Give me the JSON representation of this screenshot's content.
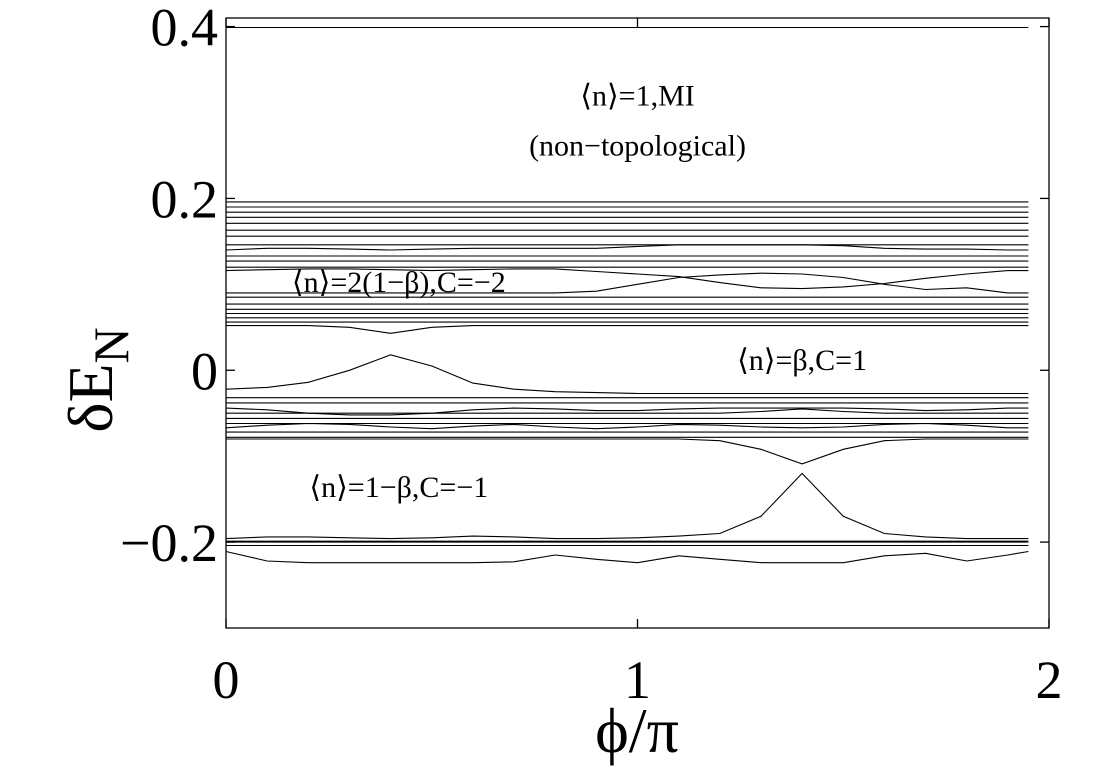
{
  "chart_data": {
    "type": "line",
    "title": "",
    "xlabel": "ϕ/π",
    "ylabel_main": "δE",
    "ylabel_sub": "N",
    "xlim": [
      0,
      2
    ],
    "ylim": [
      -0.3,
      0.41
    ],
    "xticks": [
      {
        "value": 0,
        "label": "0"
      },
      {
        "value": 1,
        "label": "1"
      },
      {
        "value": 2,
        "label": "2"
      }
    ],
    "yticks": [
      {
        "value": 0.4,
        "label": "0.4"
      },
      {
        "value": 0.2,
        "label": "0.2"
      },
      {
        "value": 0,
        "label": "0"
      },
      {
        "value": -0.2,
        "label": "−0.2"
      }
    ],
    "grid": false,
    "annotations": [
      {
        "lines": [
          "⟨n⟩=1,MI",
          "(non−topological)"
        ],
        "x": 1.0,
        "y": 0.32
      },
      {
        "lines": [
          "⟨n⟩=2(1−β),C=−2"
        ],
        "x": 0.42,
        "y": 0.103
      },
      {
        "lines": [
          "⟨n⟩=β,C=1"
        ],
        "x": 1.4,
        "y": 0.012
      },
      {
        "lines": [
          "⟨n⟩=1−β,C=−1"
        ],
        "x": 0.42,
        "y": -0.136
      }
    ],
    "x": [
      0,
      0.1,
      0.2,
      0.3,
      0.4,
      0.5,
      0.6,
      0.7,
      0.8,
      0.9,
      1.0,
      1.1,
      1.2,
      1.3,
      1.4,
      1.5,
      1.6,
      1.7,
      1.8,
      1.9,
      1.95
    ],
    "series": [
      {
        "values": [
          0.399,
          0.399,
          0.399,
          0.399,
          0.399,
          0.399,
          0.399,
          0.399,
          0.399,
          0.399,
          0.399,
          0.399,
          0.399,
          0.399,
          0.399,
          0.399,
          0.399,
          0.399,
          0.399,
          0.399,
          0.399
        ]
      },
      {
        "values": [
          0.196,
          0.196,
          0.196,
          0.196,
          0.196,
          0.196,
          0.196,
          0.196,
          0.196,
          0.196,
          0.196,
          0.196,
          0.196,
          0.196,
          0.196,
          0.196,
          0.196,
          0.196,
          0.196,
          0.196,
          0.196
        ]
      },
      {
        "values": [
          0.19,
          0.19,
          0.19,
          0.19,
          0.19,
          0.19,
          0.19,
          0.19,
          0.19,
          0.19,
          0.19,
          0.19,
          0.19,
          0.19,
          0.19,
          0.19,
          0.19,
          0.19,
          0.19,
          0.19,
          0.19
        ]
      },
      {
        "values": [
          0.184,
          0.184,
          0.184,
          0.184,
          0.184,
          0.184,
          0.184,
          0.184,
          0.184,
          0.184,
          0.184,
          0.184,
          0.184,
          0.184,
          0.184,
          0.184,
          0.184,
          0.184,
          0.184,
          0.184,
          0.184
        ]
      },
      {
        "values": [
          0.178,
          0.178,
          0.178,
          0.178,
          0.178,
          0.178,
          0.178,
          0.178,
          0.178,
          0.178,
          0.178,
          0.178,
          0.178,
          0.178,
          0.178,
          0.178,
          0.178,
          0.178,
          0.178,
          0.178,
          0.178
        ]
      },
      {
        "values": [
          0.171,
          0.171,
          0.171,
          0.171,
          0.171,
          0.171,
          0.171,
          0.171,
          0.171,
          0.171,
          0.171,
          0.171,
          0.171,
          0.171,
          0.171,
          0.171,
          0.171,
          0.171,
          0.171,
          0.171,
          0.171
        ]
      },
      {
        "values": [
          0.163,
          0.163,
          0.163,
          0.163,
          0.163,
          0.163,
          0.163,
          0.163,
          0.163,
          0.163,
          0.163,
          0.163,
          0.163,
          0.163,
          0.163,
          0.163,
          0.163,
          0.163,
          0.163,
          0.163,
          0.163
        ]
      },
      {
        "values": [
          0.156,
          0.156,
          0.156,
          0.156,
          0.156,
          0.156,
          0.156,
          0.156,
          0.156,
          0.156,
          0.156,
          0.156,
          0.156,
          0.156,
          0.156,
          0.156,
          0.156,
          0.156,
          0.156,
          0.156,
          0.156
        ]
      },
      {
        "values": [
          0.146,
          0.146,
          0.146,
          0.146,
          0.146,
          0.146,
          0.146,
          0.146,
          0.146,
          0.146,
          0.146,
          0.146,
          0.146,
          0.146,
          0.146,
          0.146,
          0.146,
          0.146,
          0.146,
          0.146,
          0.146
        ]
      },
      {
        "values": [
          0.14,
          0.142,
          0.142,
          0.141,
          0.14,
          0.141,
          0.142,
          0.142,
          0.142,
          0.142,
          0.144,
          0.146,
          0.146,
          0.146,
          0.146,
          0.145,
          0.142,
          0.141,
          0.141,
          0.14,
          0.14
        ]
      },
      {
        "values": [
          0.133,
          0.133,
          0.133,
          0.133,
          0.133,
          0.133,
          0.133,
          0.133,
          0.133,
          0.133,
          0.133,
          0.133,
          0.133,
          0.133,
          0.133,
          0.133,
          0.133,
          0.133,
          0.133,
          0.133,
          0.133
        ]
      },
      {
        "values": [
          0.127,
          0.127,
          0.127,
          0.127,
          0.127,
          0.127,
          0.127,
          0.127,
          0.127,
          0.127,
          0.127,
          0.127,
          0.127,
          0.127,
          0.127,
          0.127,
          0.127,
          0.127,
          0.127,
          0.127,
          0.127
        ]
      },
      {
        "values": [
          0.12,
          0.12,
          0.12,
          0.12,
          0.12,
          0.12,
          0.12,
          0.12,
          0.12,
          0.12,
          0.12,
          0.12,
          0.12,
          0.12,
          0.12,
          0.12,
          0.12,
          0.12,
          0.12,
          0.12,
          0.12
        ]
      },
      {
        "values": [
          0.116,
          0.117,
          0.118,
          0.118,
          0.117,
          0.116,
          0.117,
          0.118,
          0.118,
          0.115,
          0.112,
          0.109,
          0.102,
          0.096,
          0.095,
          0.097,
          0.101,
          0.107,
          0.112,
          0.116,
          0.116
        ]
      },
      {
        "values": [
          0.09,
          0.09,
          0.09,
          0.09,
          0.09,
          0.09,
          0.09,
          0.09,
          0.09,
          0.092,
          0.1,
          0.108,
          0.111,
          0.113,
          0.112,
          0.108,
          0.1,
          0.094,
          0.096,
          0.09,
          0.09
        ]
      },
      {
        "values": [
          0.085,
          0.085,
          0.085,
          0.085,
          0.085,
          0.085,
          0.085,
          0.085,
          0.085,
          0.085,
          0.085,
          0.085,
          0.085,
          0.085,
          0.085,
          0.085,
          0.085,
          0.085,
          0.085,
          0.085,
          0.085
        ]
      },
      {
        "values": [
          0.077,
          0.077,
          0.077,
          0.077,
          0.077,
          0.077,
          0.077,
          0.077,
          0.077,
          0.077,
          0.077,
          0.077,
          0.077,
          0.077,
          0.077,
          0.077,
          0.077,
          0.077,
          0.077,
          0.077,
          0.077
        ]
      },
      {
        "values": [
          0.071,
          0.071,
          0.071,
          0.071,
          0.071,
          0.071,
          0.071,
          0.071,
          0.071,
          0.071,
          0.071,
          0.071,
          0.071,
          0.071,
          0.071,
          0.071,
          0.071,
          0.071,
          0.071,
          0.071,
          0.071
        ]
      },
      {
        "values": [
          0.066,
          0.066,
          0.066,
          0.066,
          0.066,
          0.066,
          0.066,
          0.066,
          0.066,
          0.066,
          0.066,
          0.066,
          0.066,
          0.066,
          0.066,
          0.066,
          0.066,
          0.066,
          0.066,
          0.066,
          0.066
        ]
      },
      {
        "values": [
          0.061,
          0.061,
          0.061,
          0.061,
          0.061,
          0.061,
          0.061,
          0.061,
          0.061,
          0.061,
          0.061,
          0.061,
          0.061,
          0.061,
          0.061,
          0.061,
          0.061,
          0.061,
          0.061,
          0.061,
          0.061
        ]
      },
      {
        "values": [
          0.056,
          0.056,
          0.056,
          0.056,
          0.056,
          0.056,
          0.056,
          0.056,
          0.056,
          0.056,
          0.056,
          0.056,
          0.056,
          0.056,
          0.056,
          0.056,
          0.056,
          0.056,
          0.056,
          0.056,
          0.056
        ]
      },
      {
        "values": [
          0.052,
          0.052,
          0.052,
          0.05,
          0.043,
          0.05,
          0.052,
          0.052,
          0.052,
          0.052,
          0.052,
          0.052,
          0.052,
          0.052,
          0.052,
          0.052,
          0.052,
          0.052,
          0.052,
          0.052,
          0.052
        ]
      },
      {
        "values": [
          -0.022,
          -0.02,
          -0.014,
          0.0,
          0.018,
          0.005,
          -0.015,
          -0.022,
          -0.025,
          -0.026,
          -0.027,
          -0.027,
          -0.027,
          -0.027,
          -0.027,
          -0.027,
          -0.027,
          -0.027,
          -0.027,
          -0.027,
          -0.027
        ]
      },
      {
        "values": [
          -0.032,
          -0.032,
          -0.032,
          -0.032,
          -0.032,
          -0.032,
          -0.032,
          -0.032,
          -0.032,
          -0.032,
          -0.032,
          -0.032,
          -0.032,
          -0.032,
          -0.032,
          -0.032,
          -0.032,
          -0.032,
          -0.032,
          -0.032,
          -0.032
        ]
      },
      {
        "values": [
          -0.038,
          -0.038,
          -0.038,
          -0.038,
          -0.038,
          -0.038,
          -0.038,
          -0.038,
          -0.038,
          -0.038,
          -0.038,
          -0.038,
          -0.038,
          -0.038,
          -0.038,
          -0.038,
          -0.038,
          -0.038,
          -0.038,
          -0.038,
          -0.038
        ]
      },
      {
        "values": [
          -0.044,
          -0.046,
          -0.05,
          -0.052,
          -0.052,
          -0.05,
          -0.046,
          -0.044,
          -0.045,
          -0.047,
          -0.047,
          -0.045,
          -0.044,
          -0.044,
          -0.044,
          -0.044,
          -0.045,
          -0.047,
          -0.046,
          -0.044,
          -0.044
        ]
      },
      {
        "values": [
          -0.05,
          -0.05,
          -0.05,
          -0.05,
          -0.05,
          -0.05,
          -0.05,
          -0.05,
          -0.05,
          -0.05,
          -0.05,
          -0.05,
          -0.05,
          -0.048,
          -0.045,
          -0.048,
          -0.05,
          -0.05,
          -0.05,
          -0.05,
          -0.05
        ]
      },
      {
        "values": [
          -0.056,
          -0.056,
          -0.056,
          -0.056,
          -0.056,
          -0.056,
          -0.056,
          -0.056,
          -0.056,
          -0.056,
          -0.056,
          -0.056,
          -0.056,
          -0.056,
          -0.056,
          -0.056,
          -0.056,
          -0.056,
          -0.056,
          -0.056,
          -0.056
        ]
      },
      {
        "values": [
          -0.062,
          -0.062,
          -0.062,
          -0.062,
          -0.062,
          -0.062,
          -0.062,
          -0.062,
          -0.062,
          -0.062,
          -0.062,
          -0.062,
          -0.062,
          -0.062,
          -0.062,
          -0.062,
          -0.062,
          -0.062,
          -0.062,
          -0.062,
          -0.062
        ]
      },
      {
        "values": [
          -0.067,
          -0.064,
          -0.062,
          -0.063,
          -0.066,
          -0.068,
          -0.065,
          -0.063,
          -0.066,
          -0.068,
          -0.066,
          -0.063,
          -0.064,
          -0.066,
          -0.067,
          -0.066,
          -0.063,
          -0.062,
          -0.064,
          -0.067,
          -0.067
        ]
      },
      {
        "values": [
          -0.072,
          -0.072,
          -0.072,
          -0.072,
          -0.072,
          -0.072,
          -0.072,
          -0.072,
          -0.072,
          -0.072,
          -0.072,
          -0.072,
          -0.072,
          -0.072,
          -0.072,
          -0.072,
          -0.072,
          -0.072,
          -0.072,
          -0.072,
          -0.072
        ]
      },
      {
        "values": [
          -0.078,
          -0.078,
          -0.078,
          -0.078,
          -0.078,
          -0.078,
          -0.078,
          -0.078,
          -0.078,
          -0.078,
          -0.078,
          -0.078,
          -0.078,
          -0.078,
          -0.078,
          -0.078,
          -0.078,
          -0.078,
          -0.078,
          -0.078,
          -0.078
        ]
      },
      {
        "values": [
          -0.08,
          -0.08,
          -0.08,
          -0.08,
          -0.08,
          -0.08,
          -0.08,
          -0.08,
          -0.08,
          -0.08,
          -0.08,
          -0.08,
          -0.082,
          -0.092,
          -0.109,
          -0.092,
          -0.082,
          -0.08,
          -0.08,
          -0.08,
          -0.08
        ]
      },
      {
        "values": [
          -0.196,
          -0.194,
          -0.194,
          -0.195,
          -0.196,
          -0.195,
          -0.193,
          -0.194,
          -0.196,
          -0.196,
          -0.195,
          -0.193,
          -0.19,
          -0.17,
          -0.12,
          -0.17,
          -0.19,
          -0.194,
          -0.196,
          -0.196,
          -0.196
        ]
      },
      {
        "values": [
          -0.199,
          -0.199,
          -0.199,
          -0.199,
          -0.199,
          -0.199,
          -0.199,
          -0.199,
          -0.199,
          -0.199,
          -0.199,
          -0.199,
          -0.199,
          -0.199,
          -0.199,
          -0.199,
          -0.199,
          -0.199,
          -0.199,
          -0.199,
          -0.199
        ]
      },
      {
        "values": [
          -0.2,
          -0.2,
          -0.2,
          -0.2,
          -0.2,
          -0.2,
          -0.2,
          -0.2,
          -0.2,
          -0.2,
          -0.2,
          -0.2,
          -0.2,
          -0.2,
          -0.2,
          -0.2,
          -0.2,
          -0.2,
          -0.2,
          -0.2,
          -0.2
        ]
      },
      {
        "values": [
          -0.204,
          -0.204,
          -0.204,
          -0.204,
          -0.204,
          -0.204,
          -0.204,
          -0.204,
          -0.204,
          -0.204,
          -0.204,
          -0.204,
          -0.204,
          -0.204,
          -0.204,
          -0.204,
          -0.204,
          -0.204,
          -0.204,
          -0.204,
          -0.204
        ]
      },
      {
        "values": [
          -0.211,
          -0.222,
          -0.224,
          -0.224,
          -0.224,
          -0.224,
          -0.224,
          -0.223,
          -0.215,
          -0.22,
          -0.224,
          -0.216,
          -0.22,
          -0.224,
          -0.224,
          -0.224,
          -0.216,
          -0.213,
          -0.222,
          -0.215,
          -0.211
        ]
      }
    ]
  }
}
